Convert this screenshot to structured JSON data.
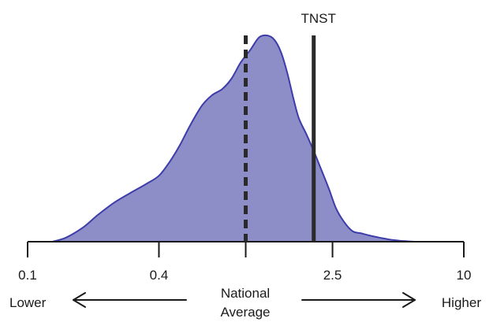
{
  "chart_data": {
    "type": "area",
    "title": "",
    "x_scale": "log",
    "xlim": [
      0.1,
      10
    ],
    "ticks": [
      {
        "value": 0.1,
        "label": "0.1"
      },
      {
        "value": 0.4,
        "label": "0.4"
      },
      {
        "value": 1.0,
        "label": ""
      },
      {
        "value": 2.5,
        "label": "2.5"
      },
      {
        "value": 10,
        "label": "10"
      }
    ],
    "density_curve": {
      "x": [
        0.13,
        0.15,
        0.18,
        0.21,
        0.25,
        0.3,
        0.35,
        0.4,
        0.45,
        0.5,
        0.56,
        0.63,
        0.7,
        0.78,
        0.86,
        0.95,
        1.05,
        1.15,
        1.25,
        1.35,
        1.45,
        1.55,
        1.65,
        1.75,
        1.9,
        2.05,
        2.2,
        2.4,
        2.6,
        2.85,
        3.1,
        3.4,
        3.7,
        4.1,
        4.6,
        5.2,
        6.0
      ],
      "y": [
        0.0,
        0.02,
        0.07,
        0.13,
        0.19,
        0.24,
        0.28,
        0.32,
        0.39,
        0.47,
        0.57,
        0.66,
        0.71,
        0.74,
        0.79,
        0.87,
        0.93,
        0.99,
        1.0,
        0.98,
        0.92,
        0.82,
        0.7,
        0.6,
        0.52,
        0.44,
        0.36,
        0.26,
        0.16,
        0.09,
        0.05,
        0.04,
        0.03,
        0.02,
        0.01,
        0.004,
        0.0
      ],
      "fill_color": "#8d8dc8",
      "line_color": "#3d3daa"
    },
    "reference_lines": [
      {
        "name": "National Average",
        "value": 1.0,
        "style": "dashed",
        "color": "#2a2a2a"
      },
      {
        "name": "TNST",
        "value": 2.05,
        "style": "solid",
        "color": "#2a2a2a",
        "label": "TNST"
      }
    ],
    "annotations": {
      "lower": "Lower",
      "higher": "Higher",
      "center_line1": "National",
      "center_line2": "Average"
    }
  }
}
